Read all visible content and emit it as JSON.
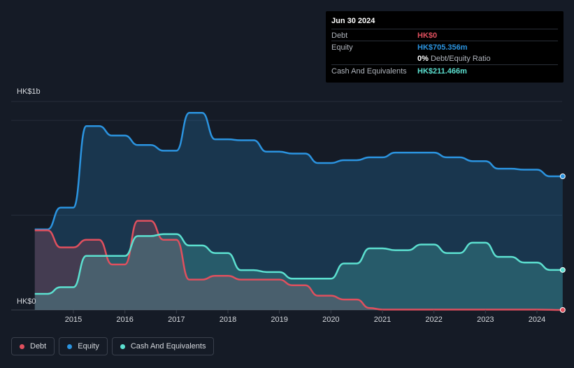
{
  "tooltip": {
    "date": "Jun 30 2024",
    "debt_label": "Debt",
    "debt_value": "HK$0",
    "equity_label": "Equity",
    "equity_value": "HK$705.356m",
    "ratio_value": "0%",
    "ratio_label": "Debt/Equity Ratio",
    "cash_label": "Cash And Equivalents",
    "cash_value": "HK$211.466m"
  },
  "colors": {
    "debt": "#e0505e",
    "equity": "#2b94e0",
    "cash": "#5ce0d0",
    "background": "#151b26"
  },
  "legend": [
    {
      "label": "Debt",
      "color": "#e0505e"
    },
    {
      "label": "Equity",
      "color": "#2b94e0"
    },
    {
      "label": "Cash And Equivalents",
      "color": "#5ce0d0"
    }
  ],
  "chart_data": {
    "type": "area",
    "y_top_label": "HK$1b",
    "y_bottom_label": "HK$0",
    "ylim": [
      0,
      1100
    ],
    "xlim": [
      2014.25,
      2024.5
    ],
    "x_ticks": [
      "2015",
      "2016",
      "2017",
      "2018",
      "2019",
      "2020",
      "2021",
      "2022",
      "2023",
      "2024"
    ],
    "grid": true,
    "series": [
      {
        "name": "Debt",
        "x": [
          2014.25,
          2014.5,
          2014.75,
          2015.0,
          2015.25,
          2015.5,
          2015.75,
          2016.0,
          2016.25,
          2016.5,
          2016.75,
          2017.0,
          2017.25,
          2017.5,
          2017.75,
          2018.0,
          2018.25,
          2018.5,
          2018.75,
          2019.0,
          2019.25,
          2019.5,
          2019.75,
          2020.0,
          2020.25,
          2020.5,
          2020.75,
          2021.0,
          2021.25,
          2022.0,
          2023.0,
          2024.0,
          2024.5
        ],
        "values": [
          420,
          420,
          330,
          330,
          370,
          370,
          240,
          240,
          470,
          470,
          370,
          370,
          160,
          160,
          180,
          180,
          160,
          160,
          160,
          160,
          130,
          130,
          75,
          75,
          55,
          55,
          10,
          2,
          2,
          2,
          2,
          2,
          0
        ]
      },
      {
        "name": "Equity",
        "x": [
          2014.25,
          2014.5,
          2014.75,
          2015.0,
          2015.25,
          2015.5,
          2015.75,
          2016.0,
          2016.25,
          2016.5,
          2016.75,
          2017.0,
          2017.25,
          2017.5,
          2017.75,
          2018.0,
          2018.25,
          2018.5,
          2018.75,
          2019.0,
          2019.25,
          2019.5,
          2019.75,
          2020.0,
          2020.25,
          2020.5,
          2020.75,
          2021.0,
          2021.25,
          2021.5,
          2021.75,
          2022.0,
          2022.25,
          2022.5,
          2022.75,
          2023.0,
          2023.25,
          2023.5,
          2023.75,
          2024.0,
          2024.25,
          2024.5
        ],
        "values": [
          425,
          425,
          540,
          540,
          970,
          970,
          920,
          920,
          870,
          870,
          840,
          840,
          1040,
          1040,
          900,
          900,
          895,
          895,
          835,
          835,
          825,
          825,
          775,
          775,
          790,
          790,
          805,
          805,
          830,
          830,
          830,
          830,
          805,
          805,
          785,
          785,
          745,
          745,
          740,
          740,
          705,
          705
        ]
      },
      {
        "name": "Cash And Equivalents",
        "x": [
          2014.25,
          2014.5,
          2014.75,
          2015.0,
          2015.25,
          2015.5,
          2015.75,
          2016.0,
          2016.25,
          2016.5,
          2016.75,
          2017.0,
          2017.25,
          2017.5,
          2017.75,
          2018.0,
          2018.25,
          2018.5,
          2018.75,
          2019.0,
          2019.25,
          2019.5,
          2019.75,
          2020.0,
          2020.25,
          2020.5,
          2020.75,
          2021.0,
          2021.25,
          2021.5,
          2021.75,
          2022.0,
          2022.25,
          2022.5,
          2022.75,
          2023.0,
          2023.25,
          2023.5,
          2023.75,
          2024.0,
          2024.25,
          2024.5
        ],
        "values": [
          85,
          85,
          120,
          120,
          285,
          285,
          285,
          285,
          390,
          390,
          400,
          400,
          340,
          340,
          300,
          300,
          210,
          210,
          200,
          200,
          165,
          165,
          165,
          165,
          245,
          245,
          325,
          325,
          315,
          315,
          345,
          345,
          300,
          300,
          355,
          355,
          280,
          280,
          250,
          250,
          211,
          211
        ]
      }
    ]
  }
}
